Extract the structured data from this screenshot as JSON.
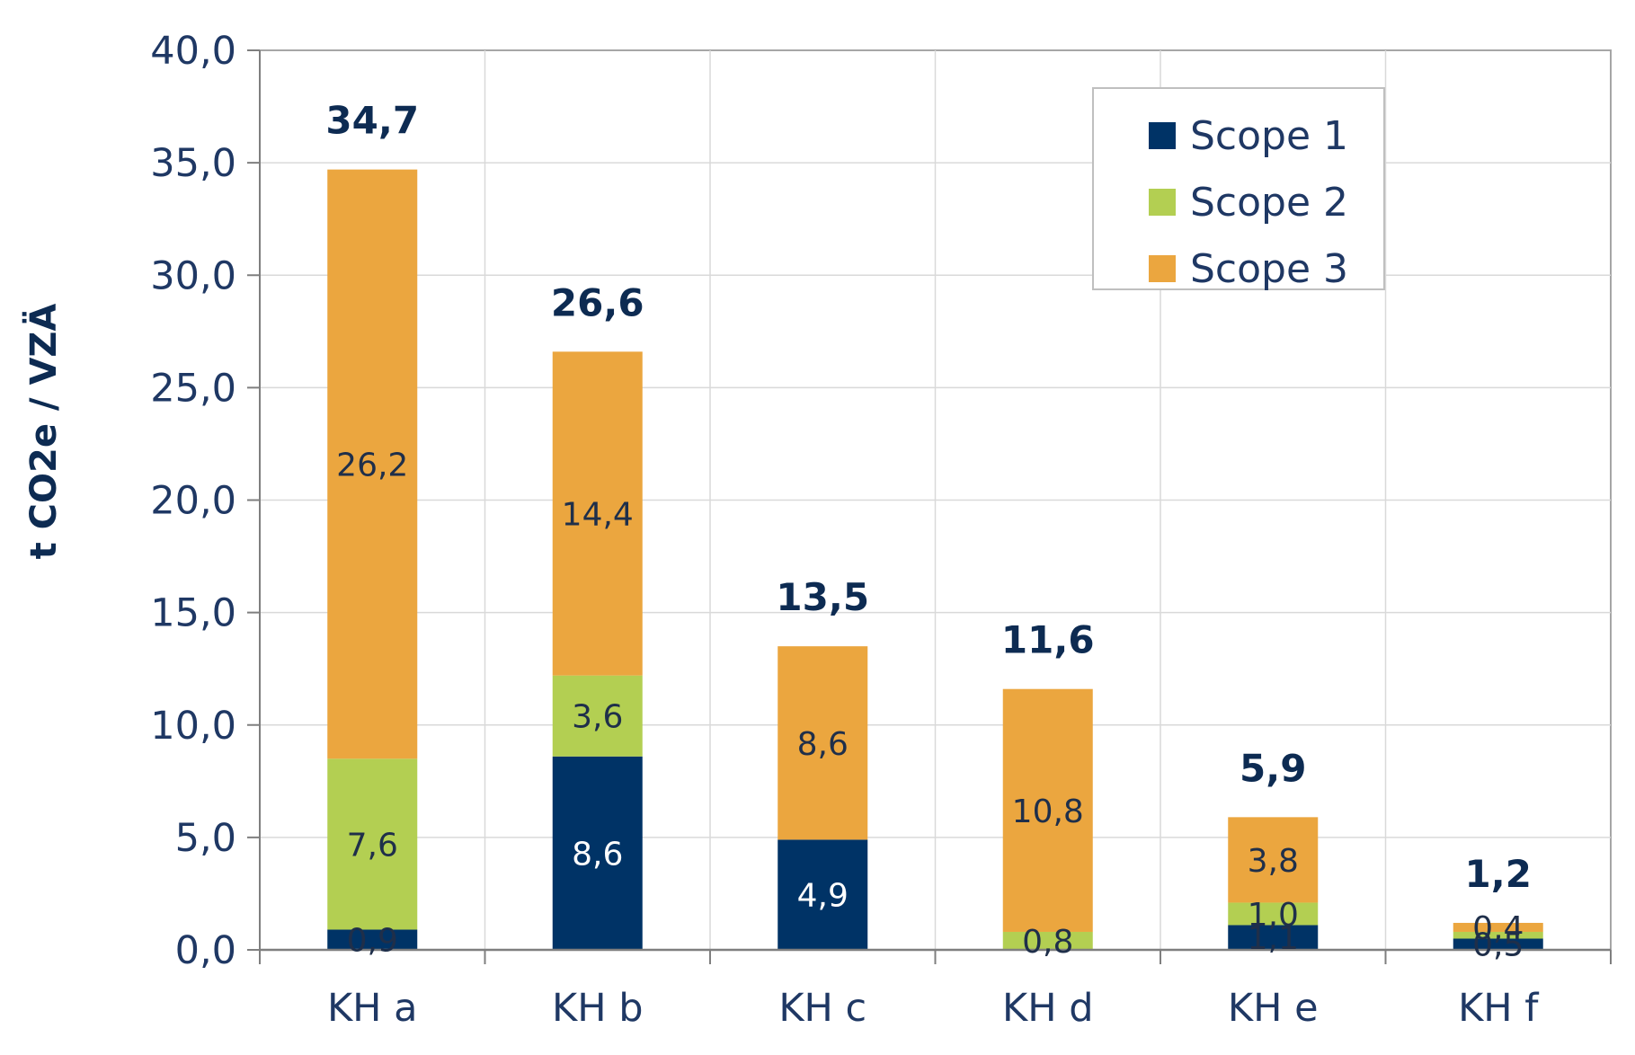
{
  "chart_data": {
    "type": "bar",
    "stacked": true,
    "categories": [
      "KH a",
      "KH b",
      "KH c",
      "KH d",
      "KH e",
      "KH f"
    ],
    "series": [
      {
        "name": "Scope 1",
        "color": "#003366",
        "values": [
          0.9,
          8.6,
          4.9,
          0.0,
          1.1,
          0.5
        ],
        "labels": [
          "0,9",
          "8,6",
          "4,9",
          "",
          "1,1",
          "0,5"
        ]
      },
      {
        "name": "Scope 2",
        "color": "#b3cf52",
        "values": [
          7.6,
          3.6,
          0.0,
          0.8,
          1.0,
          0.3
        ],
        "labels": [
          "7,6",
          "3,6",
          "",
          "0,8",
          "1,0",
          ""
        ]
      },
      {
        "name": "Scope 3",
        "color": "#eba63f",
        "values": [
          26.2,
          14.4,
          8.6,
          10.8,
          3.8,
          0.4
        ],
        "labels": [
          "26,2",
          "14,4",
          "8,6",
          "10,8",
          "3,8",
          "0,4"
        ]
      }
    ],
    "totals": [
      34.7,
      26.6,
      13.5,
      11.6,
      5.9,
      1.2
    ],
    "total_labels": [
      "34,7",
      "26,6",
      "13,5",
      "11,6",
      "5,9",
      "1,2"
    ],
    "ylabel": "t CO2e / VZÄ",
    "ylim": [
      0,
      40
    ],
    "yticks": [
      0,
      5,
      10,
      15,
      20,
      25,
      30,
      35,
      40
    ],
    "ytick_labels": [
      "0,0",
      "5,0",
      "10,0",
      "15,0",
      "20,0",
      "25,0",
      "30,0",
      "35,0",
      "40,0"
    ],
    "grid": true,
    "legend_position": "top-right"
  }
}
